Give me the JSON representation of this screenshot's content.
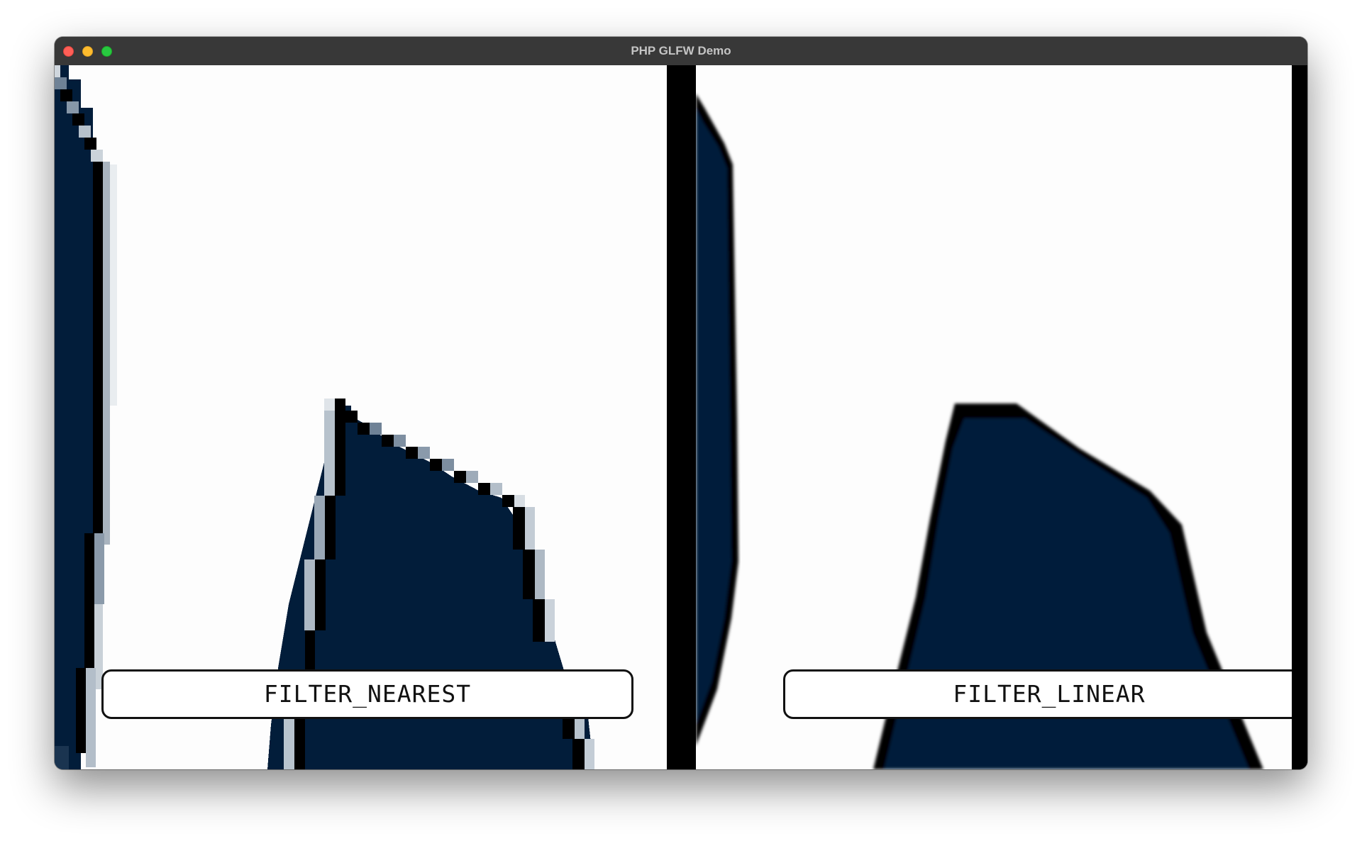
{
  "window": {
    "title": "PHP GLFW Demo"
  },
  "panels": [
    {
      "label": "FILTER_NEAREST"
    },
    {
      "label": "FILTER_LINEAR"
    }
  ],
  "colors": {
    "shape_fill": "#021d3a",
    "shape_outline": "#000000",
    "background": "#fdfdfd",
    "divider": "#000000"
  }
}
